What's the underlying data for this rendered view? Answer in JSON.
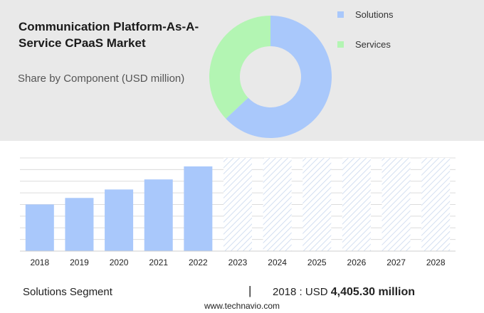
{
  "header": {
    "title": "Communication Platform-As-A-Service CPaaS Market",
    "subtitle": "Share by Component (USD million)"
  },
  "colors": {
    "solutions": "#a9c8fb",
    "services": "#b3f5b3",
    "bar": "#a9c8fb",
    "hatch": "#c8d7ee",
    "grid": "#dcdcdc",
    "panel": "#e9e9e9"
  },
  "chart_data": [
    {
      "type": "pie",
      "style": "donut",
      "labels": [
        "Solutions",
        "Services"
      ],
      "values": [
        63,
        37
      ],
      "legend_position": "right"
    },
    {
      "type": "bar",
      "categories": [
        "2018",
        "2019",
        "2020",
        "2021",
        "2022",
        "2023",
        "2024",
        "2025",
        "2026",
        "2027",
        "2028"
      ],
      "values": [
        4405.3,
        5020,
        5820,
        6770,
        8000,
        null,
        null,
        null,
        null,
        null,
        null
      ],
      "forecast_categories": [
        "2023",
        "2024",
        "2025",
        "2026",
        "2027",
        "2028"
      ],
      "ylim": [
        0,
        8800
      ],
      "grid": true
    }
  ],
  "footer": {
    "segment": "Solutions Segment",
    "divider": "|",
    "value_prefix": "2018 : USD",
    "value_bold": "4,405.30 million",
    "url": "www.technavio.com"
  }
}
